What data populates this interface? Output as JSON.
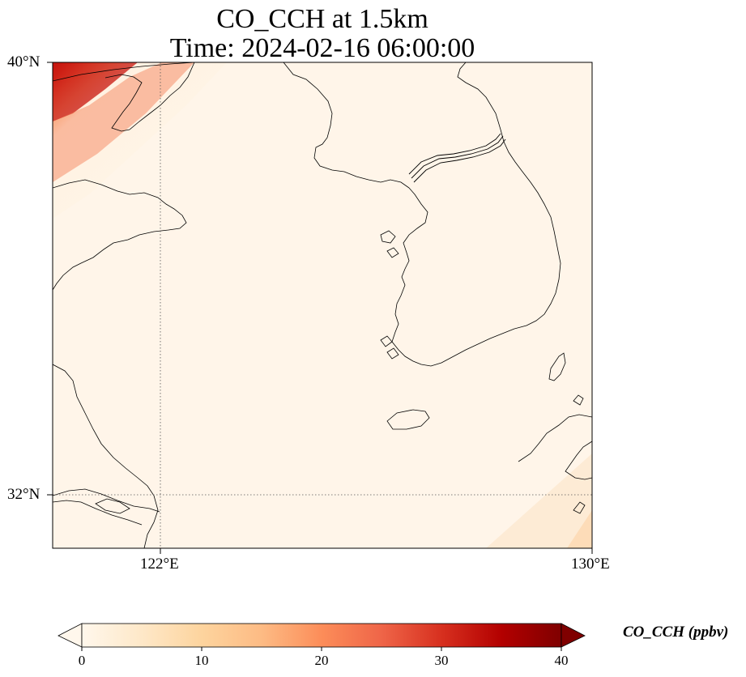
{
  "title": {
    "line1": "CO_CCH at 1.5km",
    "line2": "Time: 2024-02-16 06:00:00"
  },
  "map": {
    "lat_labels": [
      "40°N",
      "32°N"
    ],
    "lon_labels": [
      "122°E",
      "130°E"
    ],
    "extent": {
      "lon_min": 120,
      "lon_max": 130,
      "lat_min": 31,
      "lat_max": 40
    },
    "gridlines": {
      "lat": [
        32
      ],
      "lon": [
        122
      ],
      "style": "dotted"
    },
    "coastlines": true
  },
  "colorbar": {
    "label": "CO_CCH (ppbv)",
    "ticks": [
      "0",
      "10",
      "20",
      "30",
      "40"
    ],
    "range": [
      0,
      40
    ],
    "colormap": "OrRd",
    "extend": "both",
    "colors": [
      "#fff7ec",
      "#fee8c8",
      "#fdd49e",
      "#fdbb84",
      "#fc8d59",
      "#ef6548",
      "#d7301f",
      "#b30000",
      "#7f0000"
    ]
  }
}
